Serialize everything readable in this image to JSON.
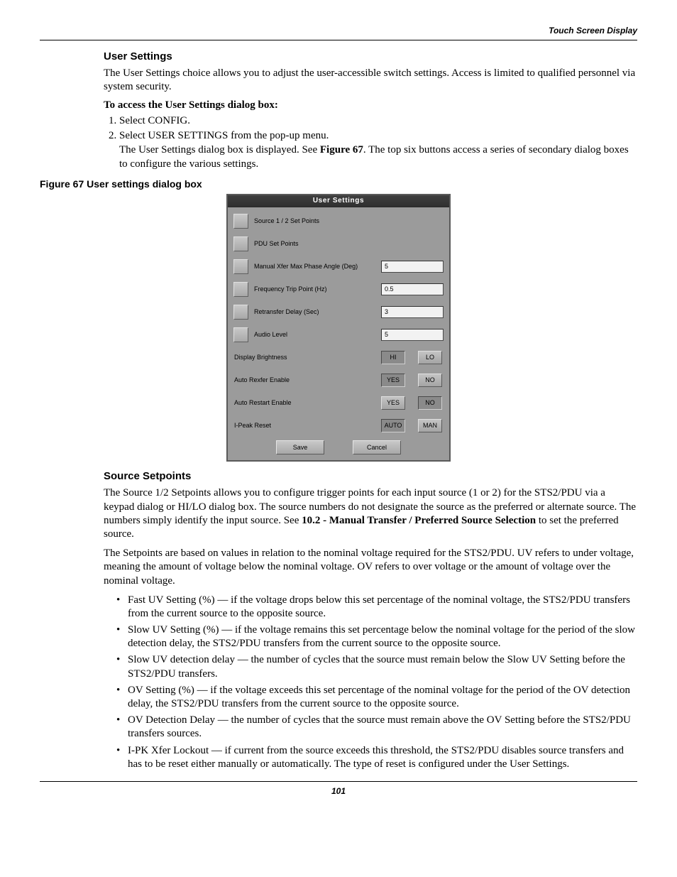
{
  "header_label": "Touch Screen Display",
  "page_number": "101",
  "s1": {
    "title": "User Settings",
    "para1": "The User Settings choice allows you to adjust the user-accessible switch settings. Access is limited to qualified personnel via system security.",
    "subhead": "To access the User Settings dialog box:",
    "step1": "Select CONFIG.",
    "step2a": "Select USER SETTINGS from the pop-up menu.",
    "step2b_pre": "The User Settings dialog box is displayed. See ",
    "step2b_bold": "Figure 67",
    "step2b_post": ". The top six buttons access a series of secondary dialog boxes to configure the various settings."
  },
  "figcap": "Figure 67  User settings dialog box",
  "dialog": {
    "title": "User Settings",
    "rows": {
      "r1": "Source 1 / 2 Set Points",
      "r2": "PDU Set Points",
      "r3": "Manual Xfer Max Phase Angle (Deg)",
      "r3v": "5",
      "r4": "Frequency Trip Point (Hz)",
      "r4v": "0.5",
      "r5": "Retransfer Delay (Sec)",
      "r5v": "3",
      "r6": "Audio Level",
      "r6v": "5",
      "r7": "Display Brightness",
      "r7a": "HI",
      "r7b": "LO",
      "r8": "Auto Rexfer Enable",
      "r8a": "YES",
      "r8b": "NO",
      "r9": "Auto Restart Enable",
      "r9a": "YES",
      "r9b": "NO",
      "r10": "I-Peak Reset",
      "r10a": "AUTO",
      "r10b": "MAN"
    },
    "save": "Save",
    "cancel": "Cancel"
  },
  "s2": {
    "title": "Source Setpoints",
    "para1_pre": "The Source 1/2 Setpoints allows you to configure trigger points for each input source (1 or 2) for the STS2/PDU via a keypad dialog or HI/LO dialog box. The source numbers do not designate the source as the preferred or alternate source. The numbers simply identify the input source. See ",
    "para1_bold": "10.2 - Manual Transfer / Preferred Source Selection",
    "para1_post": " to set the preferred source.",
    "para2": "The Setpoints are based on values in relation to the nominal voltage required for the STS2/PDU. UV refers to under voltage, meaning the amount of voltage below the nominal voltage. OV refers to over voltage or the amount of voltage over the nominal voltage.",
    "b1": "Fast UV Setting (%) — if the voltage drops below this set percentage of the nominal voltage, the STS2/PDU transfers from the current source to the opposite source.",
    "b2": "Slow UV Setting (%) — if the voltage remains this set percentage below the nominal voltage for the period of the slow detection delay, the STS2/PDU transfers from the current source to the opposite source.",
    "b3": "Slow UV detection delay — the number of cycles that the source must remain below the Slow UV Setting before the STS2/PDU transfers.",
    "b4": "OV Setting (%) — if the voltage exceeds this set percentage of the nominal voltage for the period of the OV detection delay, the STS2/PDU transfers from the current source to the opposite source.",
    "b5": "OV Detection Delay — the number of cycles that the source must remain above the OV Setting before the STS2/PDU transfers sources.",
    "b6": "I-PK Xfer Lockout — if current from the source exceeds this threshold, the STS2/PDU disables source transfers and has to be reset either manually or automatically. The type of reset is configured under the User Settings."
  }
}
